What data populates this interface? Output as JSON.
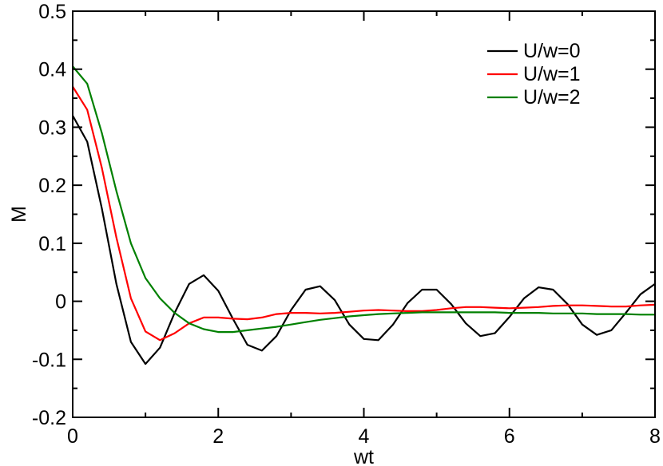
{
  "chart_data": {
    "type": "line",
    "title": "",
    "xlabel": "wt",
    "ylabel": "M",
    "xlim": [
      0,
      8
    ],
    "ylim": [
      -0.2,
      0.5
    ],
    "xticks": [
      0,
      2,
      4,
      6,
      8
    ],
    "xtick_labels": [
      "0",
      "2",
      "4",
      "6",
      "8"
    ],
    "yticks": [
      -0.2,
      -0.1,
      0,
      0.1,
      0.2,
      0.3,
      0.4,
      0.5
    ],
    "ytick_labels": [
      "-0.2",
      "-0.1",
      "0",
      "0.1",
      "0.2",
      "0.3",
      "0.4",
      "0.5"
    ],
    "grid": false,
    "legend_position": "top-right",
    "series": [
      {
        "name": "U/w=0",
        "color": "#000000",
        "x": [
          0,
          0.2,
          0.4,
          0.6,
          0.8,
          1.0,
          1.2,
          1.4,
          1.6,
          1.8,
          2.0,
          2.2,
          2.4,
          2.6,
          2.8,
          3.0,
          3.2,
          3.4,
          3.6,
          3.8,
          4.0,
          4.2,
          4.4,
          4.6,
          4.8,
          5.0,
          5.2,
          5.4,
          5.6,
          5.8,
          6.0,
          6.2,
          6.4,
          6.6,
          6.8,
          7.0,
          7.2,
          7.4,
          7.6,
          7.8,
          8.0
        ],
        "y": [
          0.32,
          0.275,
          0.16,
          0.03,
          -0.07,
          -0.108,
          -0.08,
          -0.02,
          0.03,
          0.045,
          0.018,
          -0.03,
          -0.075,
          -0.085,
          -0.06,
          -0.015,
          0.02,
          0.026,
          0.002,
          -0.04,
          -0.065,
          -0.067,
          -0.04,
          -0.003,
          0.02,
          0.02,
          -0.005,
          -0.038,
          -0.06,
          -0.055,
          -0.027,
          0.005,
          0.024,
          0.02,
          -0.005,
          -0.04,
          -0.058,
          -0.05,
          -0.02,
          0.012,
          0.03
        ]
      },
      {
        "name": "U/w=1",
        "color": "#ff0000",
        "x": [
          0,
          0.2,
          0.4,
          0.6,
          0.8,
          1.0,
          1.2,
          1.4,
          1.6,
          1.8,
          2.0,
          2.2,
          2.4,
          2.6,
          2.8,
          3.0,
          3.2,
          3.4,
          3.6,
          3.8,
          4.0,
          4.2,
          4.4,
          4.6,
          4.8,
          5.0,
          5.2,
          5.4,
          5.6,
          5.8,
          6.0,
          6.2,
          6.4,
          6.6,
          6.8,
          7.0,
          7.2,
          7.4,
          7.6,
          7.8,
          8.0
        ],
        "y": [
          0.37,
          0.33,
          0.23,
          0.11,
          0.005,
          -0.052,
          -0.067,
          -0.055,
          -0.038,
          -0.028,
          -0.028,
          -0.03,
          -0.031,
          -0.028,
          -0.022,
          -0.02,
          -0.02,
          -0.021,
          -0.02,
          -0.018,
          -0.016,
          -0.015,
          -0.016,
          -0.017,
          -0.017,
          -0.015,
          -0.012,
          -0.01,
          -0.01,
          -0.011,
          -0.012,
          -0.011,
          -0.01,
          -0.008,
          -0.007,
          -0.007,
          -0.008,
          -0.009,
          -0.009,
          -0.007,
          -0.006
        ]
      },
      {
        "name": "U/w=2",
        "color": "#008000",
        "x": [
          0,
          0.2,
          0.4,
          0.6,
          0.8,
          1.0,
          1.2,
          1.4,
          1.6,
          1.8,
          2.0,
          2.2,
          2.4,
          2.6,
          2.8,
          3.0,
          3.2,
          3.4,
          3.6,
          3.8,
          4.0,
          4.2,
          4.4,
          4.6,
          4.8,
          5.0,
          5.2,
          5.4,
          5.6,
          5.8,
          6.0,
          6.2,
          6.4,
          6.6,
          6.8,
          7.0,
          7.2,
          7.4,
          7.6,
          7.8,
          8.0
        ],
        "y": [
          0.405,
          0.375,
          0.29,
          0.19,
          0.1,
          0.04,
          0.005,
          -0.02,
          -0.038,
          -0.048,
          -0.053,
          -0.053,
          -0.05,
          -0.047,
          -0.044,
          -0.04,
          -0.036,
          -0.032,
          -0.029,
          -0.026,
          -0.024,
          -0.022,
          -0.021,
          -0.02,
          -0.019,
          -0.019,
          -0.019,
          -0.019,
          -0.019,
          -0.019,
          -0.02,
          -0.02,
          -0.02,
          -0.021,
          -0.021,
          -0.021,
          -0.022,
          -0.022,
          -0.022,
          -0.023,
          -0.023
        ]
      }
    ]
  }
}
